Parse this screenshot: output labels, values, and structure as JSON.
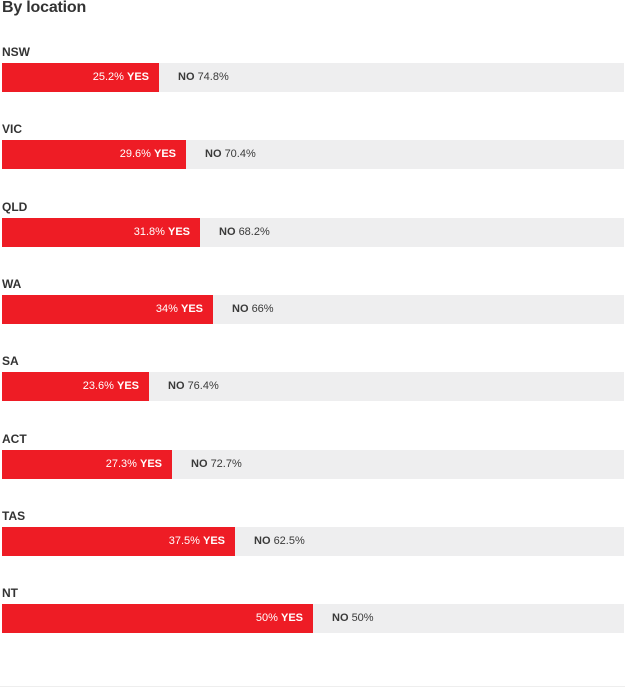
{
  "chart_data": {
    "type": "bar",
    "orientation": "horizontal",
    "stacked": true,
    "title": "By location",
    "yes_label": "YES",
    "no_label": "NO",
    "xlim": [
      0,
      100
    ],
    "categories": [
      "NSW",
      "VIC",
      "QLD",
      "WA",
      "SA",
      "ACT",
      "TAS",
      "NT"
    ],
    "series": [
      {
        "name": "YES",
        "values_text": [
          "25.2%",
          "29.6%",
          "31.8%",
          "34%",
          "23.6%",
          "27.3%",
          "37.5%",
          "50%"
        ],
        "values": [
          25.2,
          29.6,
          31.8,
          34,
          23.6,
          27.3,
          37.5,
          50
        ],
        "color": "#ee1c25"
      },
      {
        "name": "NO",
        "values_text": [
          "74.8%",
          "70.4%",
          "68.2%",
          "66%",
          "76.4%",
          "72.7%",
          "62.5%",
          "50%"
        ],
        "values": [
          74.8,
          70.4,
          68.2,
          66,
          76.4,
          72.7,
          62.5,
          50
        ],
        "color": "#eeeeef"
      }
    ]
  }
}
